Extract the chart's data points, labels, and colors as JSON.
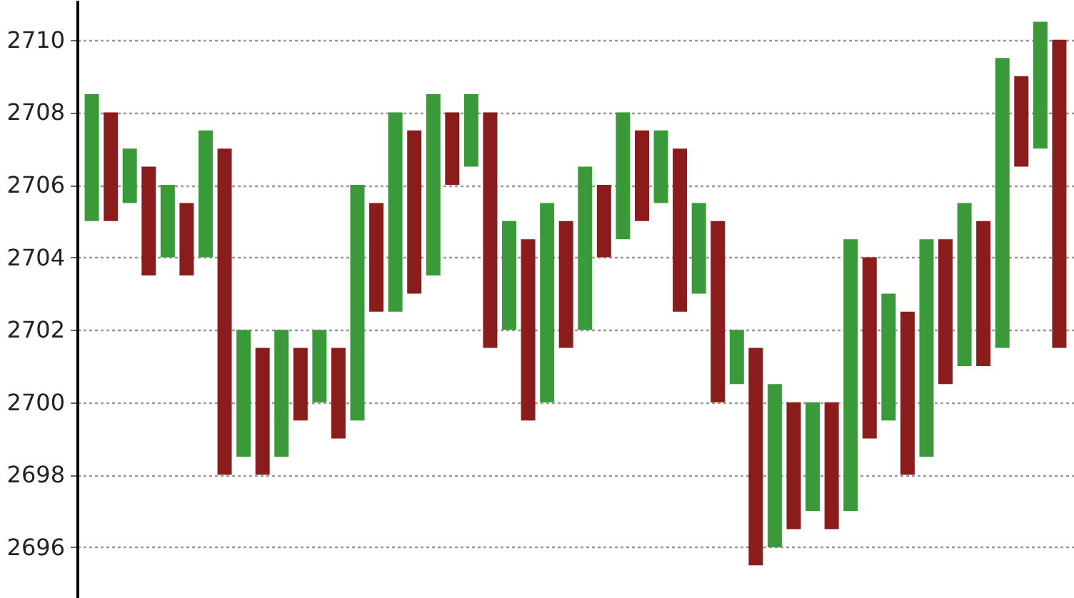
{
  "chart_data": {
    "type": "bar",
    "categories": [
      null,
      null,
      null,
      null,
      null,
      null,
      null,
      null,
      null,
      null,
      null,
      null,
      null,
      null,
      null,
      null,
      null,
      null,
      null,
      null,
      null,
      null,
      null,
      null,
      null,
      null,
      null,
      null,
      null,
      null,
      null,
      null,
      null,
      null,
      null,
      null,
      null,
      null,
      null,
      null,
      null,
      null,
      null,
      null,
      null,
      null,
      null,
      null,
      null,
      null,
      null,
      null
    ],
    "series": [
      {
        "color": "#3a9a3a",
        "values": [
          3.5,
          null,
          1.5,
          null,
          2,
          null,
          3.5,
          null,
          3.5,
          null,
          3.5,
          null,
          2,
          null,
          6.5,
          null,
          5.5,
          null,
          5,
          null,
          2,
          null,
          3,
          null,
          5.5,
          null,
          4.5,
          null,
          3.5,
          null,
          2,
          null,
          2.5,
          null,
          1.5,
          null,
          4.5,
          null,
          3,
          null,
          7.5,
          null,
          3.5,
          null,
          6,
          null,
          4.5,
          null,
          8,
          null,
          3.5,
          null
        ],
        "base": [
          2705,
          null,
          2705.5,
          null,
          2704,
          null,
          2704,
          null,
          2698.5,
          null,
          2698.5,
          null,
          2700,
          null,
          2699.5,
          null,
          2702.5,
          null,
          2703.5,
          null,
          2706.5,
          null,
          2702,
          null,
          2700,
          null,
          2702,
          null,
          2704.5,
          null,
          2705.5,
          null,
          2703,
          null,
          2700.5,
          null,
          2696,
          null,
          2697,
          null,
          2697,
          null,
          2699.5,
          null,
          2698.5,
          null,
          2701,
          null,
          2701.5,
          null,
          2707,
          null
        ]
      },
      {
        "color": "#8b1c1c",
        "values": [
          null,
          3,
          null,
          3,
          null,
          2,
          null,
          9,
          null,
          3.5,
          null,
          2,
          null,
          2.5,
          null,
          3,
          null,
          4.5,
          null,
          2,
          null,
          6.5,
          null,
          5,
          null,
          3.5,
          null,
          2,
          null,
          2.5,
          null,
          4.5,
          null,
          5,
          null,
          6,
          null,
          3.5,
          null,
          3.5,
          null,
          5,
          null,
          4.5,
          null,
          4,
          null,
          4,
          null,
          2.5,
          null,
          8.5
        ],
        "base": [
          null,
          2705,
          null,
          2703.5,
          null,
          2703.5,
          null,
          2698,
          null,
          2698,
          null,
          2699.5,
          null,
          2699,
          null,
          2702.5,
          null,
          2703,
          null,
          2706,
          null,
          2701.5,
          null,
          2699.5,
          null,
          2701.5,
          null,
          2704,
          null,
          2705,
          null,
          2702.5,
          null,
          2700,
          null,
          2695.5,
          null,
          2696.5,
          null,
          2696.5,
          null,
          2699,
          null,
          2698,
          null,
          2700.5,
          null,
          2701,
          null,
          2706.5,
          null,
          2701.5
        ]
      }
    ],
    "ylim": [
      2694.6,
      2711.1
    ],
    "yticks": [
      2696,
      2698,
      2700,
      2702,
      2704,
      2706,
      2708,
      2710
    ],
    "grid": "y"
  }
}
